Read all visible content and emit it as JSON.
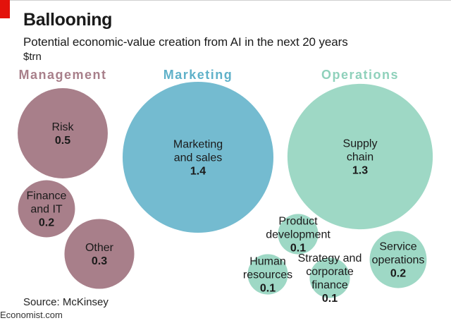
{
  "header": {
    "title": "Ballooning",
    "subtitle": "Potential economic-value creation from AI in the next 20 years",
    "unit": "$trn"
  },
  "footer": {
    "source": "Source: McKinsey",
    "brand": "Economist.com"
  },
  "colors": {
    "management": "#a87f8a",
    "marketing": "#74bbd0",
    "operations": "#9ed8c5",
    "management_label": "#a87f8a",
    "marketing_label": "#5fb1c9",
    "operations_label": "#8fd1bb",
    "brand_red": "#e3120b"
  },
  "chart_data": {
    "type": "bubble",
    "unit": "$trn",
    "groups": [
      {
        "name": "Management",
        "color_key": "management",
        "items": [
          {
            "label": [
              "Risk"
            ],
            "value": 0.5
          },
          {
            "label": [
              "Finance",
              "and IT"
            ],
            "value": 0.2
          },
          {
            "label": [
              "Other"
            ],
            "value": 0.3
          }
        ]
      },
      {
        "name": "Marketing",
        "color_key": "marketing",
        "items": [
          {
            "label": [
              "Marketing",
              "and sales"
            ],
            "value": 1.4
          }
        ]
      },
      {
        "name": "Operations",
        "color_key": "operations",
        "items": [
          {
            "label": [
              "Supply",
              "chain"
            ],
            "value": 1.3
          },
          {
            "label": [
              "Product",
              "development"
            ],
            "value": 0.1
          },
          {
            "label": [
              "Service",
              "operations"
            ],
            "value": 0.2
          },
          {
            "label": [
              "Human",
              "resources"
            ],
            "value": 0.1
          },
          {
            "label": [
              "Strategy and",
              "corporate",
              "finance"
            ],
            "value": 0.1
          }
        ]
      }
    ]
  }
}
